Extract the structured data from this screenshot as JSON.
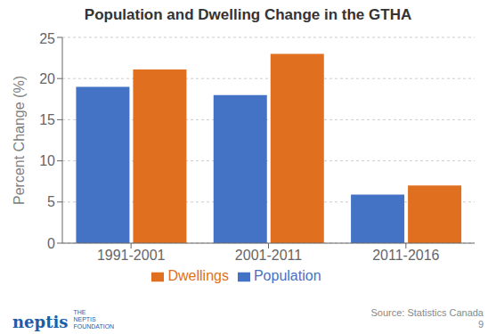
{
  "chart_data": {
    "type": "bar",
    "title": "Population and Dwelling Change in the GTHA",
    "categories": [
      "1991-2001",
      "2001-2011",
      "2011-2016"
    ],
    "series": [
      {
        "name": "Population",
        "color": "#4472c4",
        "values": [
          19.0,
          18.0,
          5.9
        ]
      },
      {
        "name": "Dwellings",
        "color": "#e07020",
        "values": [
          21.1,
          23.0,
          7.0
        ]
      }
    ],
    "ylabel": "Percent Change (%)",
    "ylim": [
      0,
      25
    ],
    "yticks": [
      0,
      5,
      10,
      15,
      20,
      25
    ],
    "grid": true,
    "legend": "bottom",
    "annotations": [
      "Source: Statistics Canada",
      "9",
      "neptis",
      "THE\nNEPTIS\nFOUNDATION"
    ]
  }
}
